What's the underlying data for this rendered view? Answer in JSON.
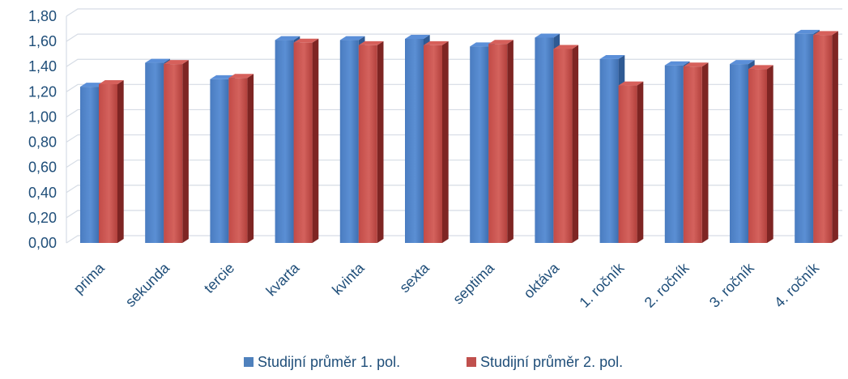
{
  "chart_data": {
    "type": "bar",
    "title": "",
    "xlabel": "",
    "ylabel": "",
    "ylim": [
      0,
      1.8
    ],
    "yticks": [
      "0,00",
      "0,20",
      "0,40",
      "0,60",
      "0,80",
      "1,00",
      "1,20",
      "1,40",
      "1,60",
      "1,80"
    ],
    "grid": true,
    "legend_position": "bottom",
    "categories": [
      "prima",
      "sekunda",
      "tercie",
      "kvarta",
      "kvinta",
      "sexta",
      "septima",
      "oktáva",
      "1. ročník",
      "2. ročník",
      "3. ročník",
      "4. ročník"
    ],
    "series": [
      {
        "name": "Studijní průměr 1. pol.",
        "color": "#4f81bd",
        "values": [
          1.24,
          1.43,
          1.3,
          1.61,
          1.61,
          1.62,
          1.56,
          1.63,
          1.46,
          1.41,
          1.42,
          1.66
        ]
      },
      {
        "name": "Studijní průměr 2. pol.",
        "color": "#c0504d",
        "values": [
          1.26,
          1.42,
          1.31,
          1.59,
          1.57,
          1.57,
          1.58,
          1.54,
          1.25,
          1.4,
          1.38,
          1.65
        ]
      }
    ]
  }
}
